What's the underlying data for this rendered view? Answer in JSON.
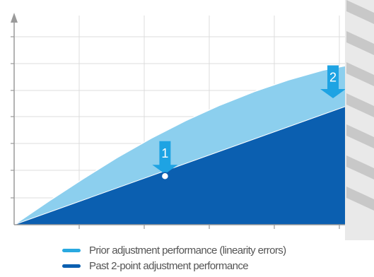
{
  "chart_data": {
    "type": "area",
    "title": "",
    "xlabel": "",
    "ylabel": "",
    "xlim": [
      0,
      10
    ],
    "ylim": [
      0,
      10
    ],
    "grid": true,
    "legend_position": "bottom",
    "series": [
      {
        "name": "Prior adjustment performance (linearity errors)",
        "color": "#8ccfee",
        "x": [
          0,
          1,
          2,
          3,
          4,
          5,
          6,
          7,
          8,
          9,
          10
        ],
        "y": [
          0,
          1.2,
          2.35,
          3.45,
          4.45,
          5.35,
          6.15,
          6.85,
          7.45,
          7.95,
          8.3
        ]
      },
      {
        "name": "Past 2-point adjustment performance",
        "color": "#0b5fb0",
        "x": [
          0,
          10
        ],
        "y": [
          0,
          6.3
        ]
      }
    ],
    "annotations": [
      {
        "label": "1",
        "x": 4.4,
        "from_y": 4.3,
        "to_y": 2.5,
        "point": true
      },
      {
        "label": "2",
        "x": 9.3,
        "from_y": 8.2,
        "to_y": 6.4,
        "point": false
      }
    ]
  },
  "legend": {
    "items": [
      {
        "label": "Prior adjustment performance (linearity errors)",
        "color": "#29a9e0"
      },
      {
        "label": "Past 2-point adjustment performance",
        "color": "#0b5fb0"
      }
    ]
  }
}
